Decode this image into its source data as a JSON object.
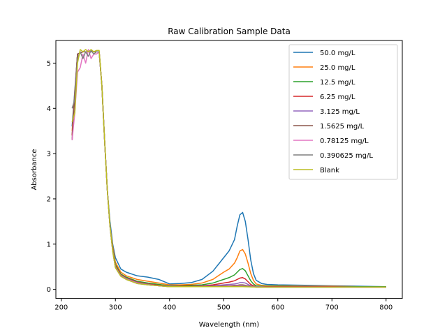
{
  "chart_data": {
    "type": "line",
    "title": "Raw Calibration Sample Data",
    "xlabel": "Wavelength (nm)",
    "ylabel": "Absorbance",
    "xlim": [
      190,
      830
    ],
    "ylim": [
      -0.2,
      5.5
    ],
    "xticks": [
      200,
      300,
      400,
      500,
      600,
      700,
      800
    ],
    "yticks": [
      0,
      1,
      2,
      3,
      4,
      5
    ],
    "grid": false,
    "legend_position": "top-right",
    "series": [
      {
        "name": "50.0 mg/L",
        "color": "#1f77b4",
        "x": [
          220,
          230,
          240,
          260,
          270,
          275,
          280,
          285,
          290,
          295,
          300,
          310,
          320,
          340,
          360,
          380,
          400,
          420,
          440,
          460,
          480,
          490,
          500,
          510,
          520,
          525,
          530,
          535,
          540,
          545,
          550,
          555,
          560,
          570,
          580,
          600,
          650,
          700,
          750,
          800
        ],
        "y": [
          3.6,
          5.2,
          5.25,
          5.25,
          5.25,
          4.5,
          3.3,
          2.2,
          1.5,
          1.0,
          0.7,
          0.45,
          0.38,
          0.3,
          0.27,
          0.22,
          0.12,
          0.13,
          0.15,
          0.22,
          0.4,
          0.55,
          0.7,
          0.85,
          1.1,
          1.4,
          1.65,
          1.7,
          1.5,
          1.1,
          0.65,
          0.35,
          0.2,
          0.13,
          0.11,
          0.1,
          0.09,
          0.08,
          0.07,
          0.06
        ]
      },
      {
        "name": "25.0 mg/L",
        "color": "#ff7f0e",
        "x": [
          220,
          230,
          240,
          260,
          270,
          275,
          280,
          285,
          290,
          295,
          300,
          310,
          320,
          340,
          360,
          380,
          400,
          420,
          440,
          460,
          480,
          490,
          500,
          510,
          520,
          525,
          530,
          535,
          540,
          545,
          550,
          555,
          560,
          570,
          580,
          600,
          650,
          700,
          750,
          800
        ],
        "y": [
          3.5,
          5.2,
          5.25,
          5.25,
          5.25,
          4.5,
          3.3,
          2.2,
          1.4,
          0.95,
          0.6,
          0.38,
          0.3,
          0.22,
          0.18,
          0.14,
          0.1,
          0.1,
          0.11,
          0.14,
          0.22,
          0.3,
          0.38,
          0.45,
          0.58,
          0.7,
          0.85,
          0.88,
          0.78,
          0.58,
          0.35,
          0.2,
          0.12,
          0.09,
          0.08,
          0.08,
          0.07,
          0.07,
          0.06,
          0.06
        ]
      },
      {
        "name": "12.5 mg/L",
        "color": "#2ca02c",
        "x": [
          220,
          230,
          240,
          260,
          270,
          275,
          280,
          285,
          290,
          295,
          300,
          310,
          320,
          340,
          360,
          380,
          400,
          420,
          440,
          460,
          480,
          490,
          500,
          510,
          520,
          525,
          530,
          535,
          540,
          545,
          550,
          555,
          560,
          570,
          580,
          600,
          650,
          700,
          750,
          800
        ],
        "y": [
          3.4,
          5.2,
          5.25,
          5.25,
          5.25,
          4.5,
          3.3,
          2.2,
          1.4,
          0.9,
          0.55,
          0.34,
          0.27,
          0.18,
          0.14,
          0.11,
          0.08,
          0.08,
          0.09,
          0.1,
          0.14,
          0.18,
          0.22,
          0.26,
          0.32,
          0.38,
          0.44,
          0.46,
          0.41,
          0.3,
          0.19,
          0.12,
          0.08,
          0.07,
          0.07,
          0.07,
          0.06,
          0.06,
          0.06,
          0.06
        ]
      },
      {
        "name": "6.25 mg/L",
        "color": "#d62728",
        "x": [
          220,
          230,
          240,
          260,
          270,
          275,
          280,
          285,
          290,
          295,
          300,
          310,
          320,
          340,
          360,
          380,
          400,
          420,
          440,
          460,
          480,
          490,
          500,
          510,
          520,
          525,
          530,
          535,
          540,
          545,
          550,
          555,
          560,
          570,
          580,
          600,
          650,
          700,
          750,
          800
        ],
        "y": [
          3.4,
          5.2,
          5.25,
          5.25,
          5.25,
          4.5,
          3.3,
          2.2,
          1.4,
          0.88,
          0.52,
          0.32,
          0.25,
          0.16,
          0.12,
          0.09,
          0.07,
          0.07,
          0.07,
          0.08,
          0.1,
          0.12,
          0.14,
          0.16,
          0.19,
          0.22,
          0.25,
          0.26,
          0.23,
          0.17,
          0.11,
          0.08,
          0.06,
          0.06,
          0.06,
          0.06,
          0.06,
          0.06,
          0.05,
          0.05
        ]
      },
      {
        "name": "3.125 mg/L",
        "color": "#9467bd",
        "x": [
          220,
          230,
          240,
          260,
          270,
          275,
          280,
          285,
          290,
          295,
          300,
          310,
          320,
          340,
          360,
          380,
          400,
          420,
          440,
          460,
          480,
          490,
          500,
          510,
          520,
          525,
          530,
          535,
          540,
          545,
          550,
          555,
          560,
          570,
          580,
          600,
          650,
          700,
          750,
          800
        ],
        "y": [
          3.3,
          5.2,
          5.25,
          5.25,
          5.25,
          4.5,
          3.3,
          2.2,
          1.4,
          0.86,
          0.5,
          0.31,
          0.24,
          0.15,
          0.11,
          0.08,
          0.07,
          0.06,
          0.06,
          0.07,
          0.08,
          0.09,
          0.1,
          0.11,
          0.12,
          0.13,
          0.15,
          0.15,
          0.14,
          0.11,
          0.08,
          0.06,
          0.06,
          0.06,
          0.05,
          0.05,
          0.05,
          0.05,
          0.05,
          0.05
        ]
      },
      {
        "name": "1.5625 mg/L",
        "color": "#8c564b",
        "x": [
          220,
          230,
          240,
          260,
          270,
          275,
          280,
          285,
          290,
          295,
          300,
          310,
          320,
          340,
          360,
          380,
          400,
          420,
          440,
          460,
          480,
          490,
          500,
          510,
          520,
          525,
          530,
          535,
          540,
          545,
          550,
          555,
          560,
          570,
          580,
          600,
          650,
          700,
          750,
          800
        ],
        "y": [
          3.3,
          5.2,
          5.25,
          5.25,
          5.25,
          4.5,
          3.3,
          2.2,
          1.4,
          0.85,
          0.49,
          0.3,
          0.23,
          0.14,
          0.1,
          0.08,
          0.06,
          0.06,
          0.06,
          0.06,
          0.07,
          0.07,
          0.08,
          0.08,
          0.09,
          0.09,
          0.1,
          0.1,
          0.09,
          0.08,
          0.07,
          0.06,
          0.05,
          0.05,
          0.05,
          0.05,
          0.05,
          0.05,
          0.05,
          0.05
        ]
      },
      {
        "name": "0.78125 mg/L",
        "color": "#e377c2",
        "x": [
          220,
          225,
          230,
          235,
          240,
          245,
          250,
          255,
          260,
          265,
          270,
          275,
          280,
          285,
          290,
          295,
          300,
          310,
          320,
          340,
          360,
          380,
          400,
          440,
          480,
          520,
          535,
          560,
          600,
          650,
          700,
          750,
          800
        ],
        "y": [
          3.3,
          3.9,
          4.8,
          4.9,
          5.2,
          5.0,
          5.3,
          5.1,
          5.2,
          5.2,
          5.25,
          4.5,
          3.3,
          2.2,
          1.4,
          0.85,
          0.49,
          0.3,
          0.23,
          0.14,
          0.1,
          0.08,
          0.06,
          0.06,
          0.06,
          0.07,
          0.08,
          0.05,
          0.05,
          0.05,
          0.05,
          0.05,
          0.05
        ]
      },
      {
        "name": "0.390625 mg/L",
        "color": "#7f7f7f",
        "x": [
          220,
          225,
          230,
          235,
          240,
          245,
          250,
          255,
          260,
          265,
          270,
          275,
          280,
          285,
          290,
          295,
          300,
          310,
          320,
          340,
          360,
          380,
          400,
          440,
          480,
          520,
          535,
          560,
          600,
          650,
          700,
          750,
          800
        ],
        "y": [
          4.0,
          4.2,
          5.1,
          5.25,
          5.1,
          5.25,
          5.15,
          5.28,
          5.2,
          5.25,
          5.25,
          4.5,
          3.3,
          2.2,
          1.4,
          0.84,
          0.48,
          0.29,
          0.22,
          0.13,
          0.1,
          0.08,
          0.06,
          0.06,
          0.06,
          0.06,
          0.07,
          0.05,
          0.05,
          0.05,
          0.05,
          0.05,
          0.05
        ]
      },
      {
        "name": "Blank",
        "color": "#bcbd22",
        "x": [
          220,
          225,
          230,
          235,
          240,
          245,
          250,
          255,
          260,
          265,
          270,
          275,
          280,
          285,
          290,
          295,
          300,
          310,
          320,
          340,
          360,
          380,
          400,
          440,
          480,
          520,
          535,
          560,
          600,
          650,
          700,
          750,
          800
        ],
        "y": [
          3.7,
          3.9,
          5.0,
          5.3,
          5.25,
          5.3,
          5.25,
          5.3,
          5.25,
          5.28,
          5.28,
          4.5,
          3.3,
          2.2,
          1.4,
          0.84,
          0.48,
          0.29,
          0.22,
          0.13,
          0.1,
          0.08,
          0.06,
          0.06,
          0.06,
          0.06,
          0.06,
          0.05,
          0.05,
          0.05,
          0.05,
          0.05,
          0.05
        ]
      }
    ]
  }
}
